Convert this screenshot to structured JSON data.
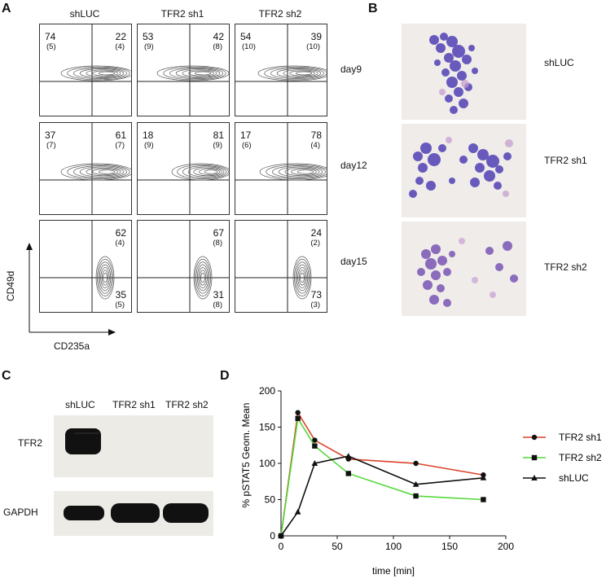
{
  "panels": {
    "A": "A",
    "B": "B",
    "C": "C",
    "D": "D"
  },
  "flow": {
    "columns": [
      "shLUC",
      "TFR2 sh1",
      "TFR2 sh2"
    ],
    "rows": [
      "day9",
      "day12",
      "day15"
    ],
    "axis_y": "CD49d",
    "axis_x": "CD235a",
    "cells": [
      [
        {
          "tl": "74",
          "tl_s": "(5)",
          "tr": "22",
          "tr_s": "(4)"
        },
        {
          "tl": "53",
          "tl_s": "(9)",
          "tr": "42",
          "tr_s": "(8)"
        },
        {
          "tl": "54",
          "tl_s": "(10)",
          "tr": "39",
          "tr_s": "(10)"
        }
      ],
      [
        {
          "tl": "37",
          "tl_s": "(7)",
          "tr": "61",
          "tr_s": "(7)"
        },
        {
          "tl": "18",
          "tl_s": "(9)",
          "tr": "81",
          "tr_s": "(9)"
        },
        {
          "tl": "17",
          "tl_s": "(6)",
          "tr": "78",
          "tr_s": "(4)"
        }
      ],
      [
        {
          "tr": "62",
          "tr_s": "(4)",
          "br": "35",
          "br_s": "(5)"
        },
        {
          "tr": "67",
          "tr_s": "(8)",
          "br": "31",
          "br_s": "(8)"
        },
        {
          "tr": "24",
          "tr_s": "(2)",
          "br": "73",
          "br_s": "(3)"
        }
      ]
    ]
  },
  "micro": {
    "labels": [
      "shLUC",
      "TFR2 sh1",
      "TFR2 sh2"
    ]
  },
  "blot": {
    "lanes": [
      "shLUC",
      "TFR2 sh1",
      "TFR2 sh2"
    ],
    "rows": [
      "TFR2",
      "GAPDH"
    ]
  },
  "chart_data": {
    "type": "line",
    "xlabel": "time [min]",
    "ylabel": "% pSTAT5 Geom. Mean",
    "xlim": [
      0,
      200
    ],
    "ylim": [
      0,
      200
    ],
    "xticks": [
      "0",
      "50",
      "100",
      "150",
      "200"
    ],
    "yticks": [
      "0",
      "50",
      "100",
      "150",
      "200"
    ],
    "legend_position": "right",
    "series": [
      {
        "name": "TFR2 sh1",
        "color": "#d9442a",
        "marker": "circle",
        "x": [
          0,
          15,
          30,
          60,
          120,
          180
        ],
        "y": [
          0,
          170,
          132,
          106,
          100,
          84
        ]
      },
      {
        "name": "TFR2 sh2",
        "color": "#55d83a",
        "marker": "square",
        "x": [
          0,
          15,
          30,
          60,
          120,
          180
        ],
        "y": [
          0,
          162,
          124,
          86,
          55,
          50
        ]
      },
      {
        "name": "shLUC",
        "color": "#111111",
        "marker": "triangle",
        "x": [
          0,
          15,
          30,
          60,
          120,
          180
        ],
        "y": [
          0,
          33,
          100,
          110,
          71,
          80
        ]
      }
    ]
  }
}
